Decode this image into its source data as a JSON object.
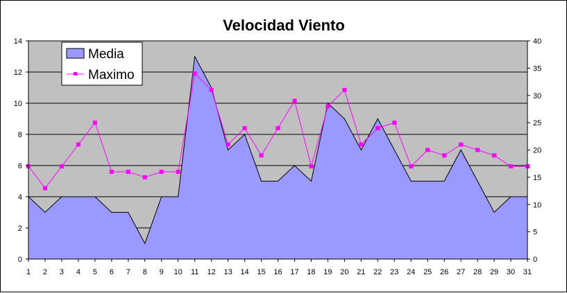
{
  "chart_data": {
    "type": "area",
    "title": "Velocidad Viento",
    "categories": [
      "1",
      "2",
      "3",
      "4",
      "5",
      "6",
      "7",
      "8",
      "9",
      "10",
      "11",
      "12",
      "13",
      "14",
      "15",
      "16",
      "17",
      "18",
      "19",
      "20",
      "21",
      "22",
      "23",
      "24",
      "25",
      "26",
      "27",
      "28",
      "29",
      "30",
      "31"
    ],
    "series": [
      {
        "name": "Media",
        "type": "area",
        "axis": "left",
        "values": [
          4,
          3,
          4,
          4,
          4,
          3,
          3,
          1,
          4,
          4,
          13,
          11,
          7,
          8,
          5,
          5,
          6,
          5,
          10,
          9,
          7,
          9,
          7,
          5,
          5,
          5,
          7,
          5,
          3,
          4,
          4
        ]
      },
      {
        "name": "Maximo",
        "type": "line",
        "axis": "right",
        "values": [
          17,
          13,
          17,
          21,
          25,
          16,
          16,
          15,
          16,
          16,
          34,
          31,
          21,
          24,
          19,
          24,
          29,
          17,
          28,
          31,
          21,
          24,
          25,
          17,
          20,
          19,
          21,
          20,
          19,
          17,
          17
        ]
      }
    ],
    "y_left": {
      "min": 0,
      "max": 14,
      "ticks": [
        0,
        2,
        4,
        6,
        8,
        10,
        12,
        14
      ]
    },
    "y_right": {
      "min": 0,
      "max": 40,
      "ticks": [
        0,
        5,
        10,
        15,
        20,
        25,
        30,
        35,
        40
      ]
    },
    "grid": true,
    "legend_position": "top-left"
  },
  "colors": {
    "plot_background": "#c0c0c0",
    "area_fill": "#9999ff",
    "area_stroke": "#000000",
    "line": "#ff00ff",
    "gridline": "#000000"
  }
}
